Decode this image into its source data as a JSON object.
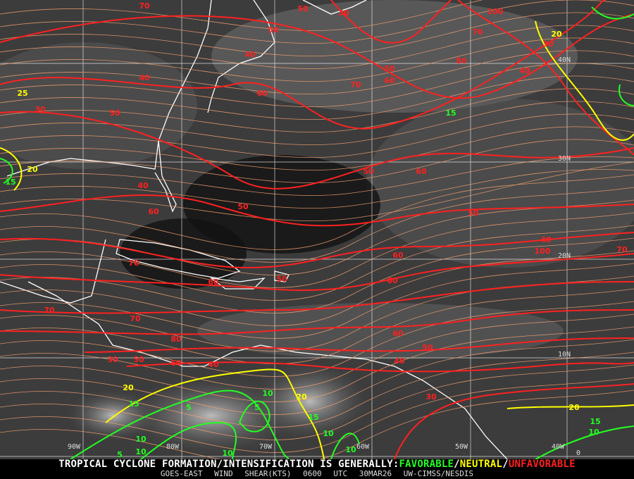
{
  "map": {
    "title_prefix": "TROPICAL CYCLONE FORMATION/INTENSIFICATION IS GENERALLY:",
    "favorable": "FAVORABLE",
    "neutral": "NEUTRAL",
    "unfavorable": "UNFAVORABLE",
    "separator": "/",
    "product": "GOES-EAST WIND SHEAR(KTS)",
    "time": "0600 UTC",
    "date": "30MAR26",
    "source": "UW-CIMSS/NESDIS",
    "colors": {
      "favorable": "#22ff22",
      "neutral": "#ffff00",
      "unfavorable": "#ff2020",
      "streamline": "#f4a070",
      "coast": "#ffffff",
      "grid": "#ffffff"
    },
    "lon_labels": [
      "90W",
      "80W",
      "70W",
      "60W",
      "50W",
      "40W"
    ],
    "lat_labels": [
      "40N",
      "30N",
      "20N",
      "10N",
      "0"
    ],
    "contour_labels": [
      70,
      50,
      30,
      40,
      100,
      50,
      40,
      70,
      50,
      60,
      80,
      20,
      30,
      40,
      25,
      30,
      50,
      60,
      70,
      50,
      15,
      20,
      15,
      40,
      60,
      50,
      60,
      50,
      40,
      70,
      60,
      70,
      70,
      60,
      60,
      50,
      100,
      70,
      60,
      80,
      50,
      40,
      50,
      60,
      40,
      30,
      20,
      15,
      5,
      10,
      10,
      5,
      10,
      5,
      10,
      20,
      15,
      10,
      30,
      20,
      15,
      10,
      10
    ]
  }
}
